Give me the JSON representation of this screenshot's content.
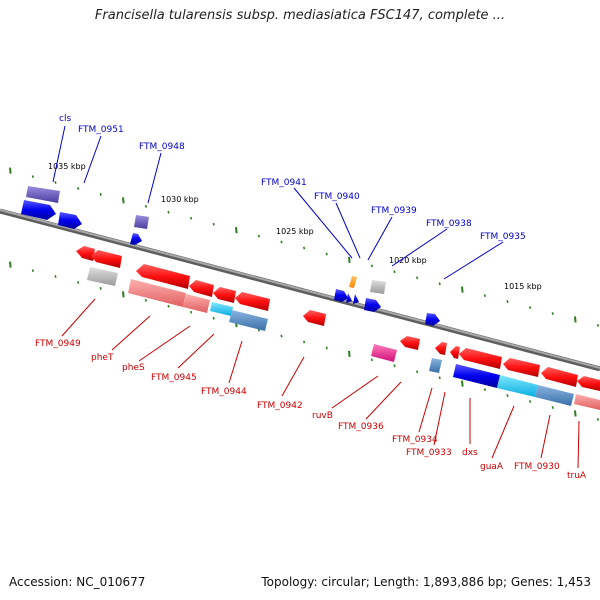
{
  "title": "Francisella tularensis subsp. mediasiatica FSC147, complete ...",
  "accession_text": "Accession: NC_010677",
  "summary_text": "Topology: circular; Length: 1,893,886 bp; Genes: 1,453",
  "colors": {
    "backbone": "#8a8a8a",
    "tick": "#2e7d1f",
    "forward_label": "#0000cc",
    "reverse_label": "#cc0000"
  },
  "scale_ticks": [
    "1035 kbp",
    "1030 kbp",
    "1025 kbp",
    "1020 kbp",
    "1015 kbp"
  ],
  "forward_labels": [
    {
      "text": "cls"
    },
    {
      "text": "FTM_0951"
    },
    {
      "text": "FTM_0948"
    },
    {
      "text": "FTM_0941"
    },
    {
      "text": "FTM_0940"
    },
    {
      "text": "FTM_0939"
    },
    {
      "text": "FTM_0938"
    },
    {
      "text": "FTM_0935"
    }
  ],
  "reverse_labels": [
    {
      "text": "FTM_0949"
    },
    {
      "text": "pheT"
    },
    {
      "text": "pheS"
    },
    {
      "text": "FTM_0945"
    },
    {
      "text": "FTM_0944"
    },
    {
      "text": "FTM_0942"
    },
    {
      "text": "ruvB"
    },
    {
      "text": "FTM_0936"
    },
    {
      "text": "FTM_0934"
    },
    {
      "text": "FTM_0933"
    },
    {
      "text": "dxs"
    },
    {
      "text": "guaA"
    },
    {
      "text": "FTM_0930"
    },
    {
      "text": "truA"
    }
  ]
}
